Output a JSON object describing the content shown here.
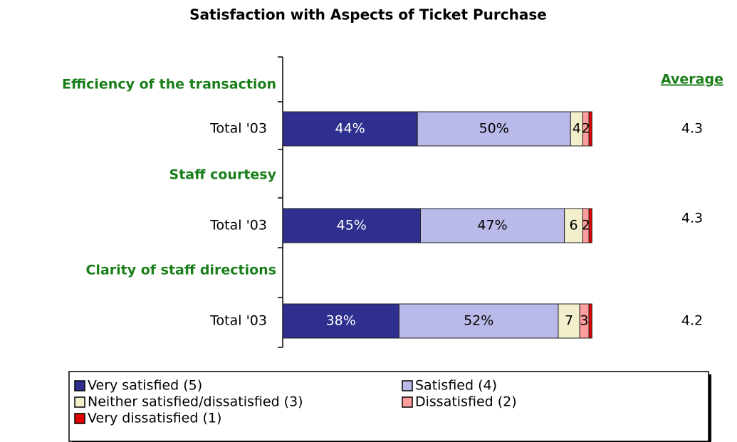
{
  "chart_data": {
    "type": "stacked-bar",
    "title": "Satisfaction with Aspects of Ticket Purchase",
    "groups": [
      "Efficiency of the transaction",
      "Staff courtesy",
      "Clarity of staff directions"
    ],
    "categories": [
      "Total '03",
      "Total '03",
      "Total '03"
    ],
    "series": [
      {
        "name": "Very satisfied (5)",
        "color": "#2f2f8f",
        "values": [
          44,
          45,
          38
        ],
        "value_labels": [
          "44%",
          "45%",
          "38%"
        ]
      },
      {
        "name": "Satisfied (4)",
        "color": "#b9b9ea",
        "values": [
          50,
          47,
          52
        ],
        "value_labels": [
          "50%",
          "47%",
          "52%"
        ]
      },
      {
        "name": "Neither satisfied/dissatisfied (3)",
        "color": "#f2f0cc",
        "values": [
          4,
          6,
          7
        ],
        "value_labels": [
          "4",
          "6",
          "7"
        ]
      },
      {
        "name": "Dissatisfied (2)",
        "color": "#ff9e9e",
        "values": [
          2,
          2,
          3
        ],
        "value_labels": [
          "2",
          "2",
          "3"
        ]
      },
      {
        "name": "Very dissatisfied (1)",
        "color": "#e00000",
        "values": [
          1,
          1,
          1
        ],
        "value_labels": [
          null,
          null,
          null
        ]
      }
    ],
    "averages": {
      "title": "Average",
      "values": [
        4.3,
        4.3,
        4.2
      ]
    }
  }
}
